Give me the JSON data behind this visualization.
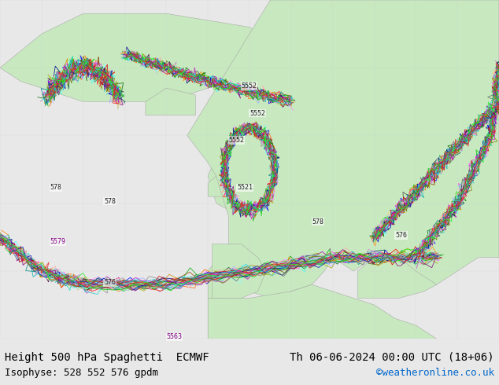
{
  "title_left": "Height 500 hPa Spaghetti  ECMWF",
  "title_right": "Th 06-06-2024 00:00 UTC (18+06)",
  "subtitle_left": "Isophyse: 528 552 576 gpdm",
  "subtitle_right": "©weatheronline.co.uk",
  "subtitle_right_color": "#0066cc",
  "text_color": "#000000",
  "title_fontsize": 10,
  "subtitle_fontsize": 9,
  "figsize": [
    6.34,
    4.9
  ],
  "dpi": 100,
  "ensemble_colors": [
    "#ff0000",
    "#00aa00",
    "#0000ff",
    "#ff8800",
    "#aa00aa",
    "#00aaaa",
    "#888800",
    "#ff44ff",
    "#44ffff",
    "#888888",
    "#ff6600",
    "#006600",
    "#000088",
    "#884400",
    "#440044",
    "#004444",
    "#aaaa00",
    "#cc44cc",
    "#44cccc",
    "#444444",
    "#ffaaaa",
    "#aaffaa",
    "#aaaaff",
    "#ffcc88",
    "#cc88cc",
    "#88cccc",
    "#cccc88",
    "#ff88ff",
    "#88ffff",
    "#cccccc",
    "#cc0000",
    "#00cc00",
    "#0000cc",
    "#cc8800",
    "#880088",
    "#008888",
    "#666600",
    "#cc22cc",
    "#22cccc",
    "#666666",
    "#ee2222",
    "#22ee22",
    "#2222ee"
  ]
}
